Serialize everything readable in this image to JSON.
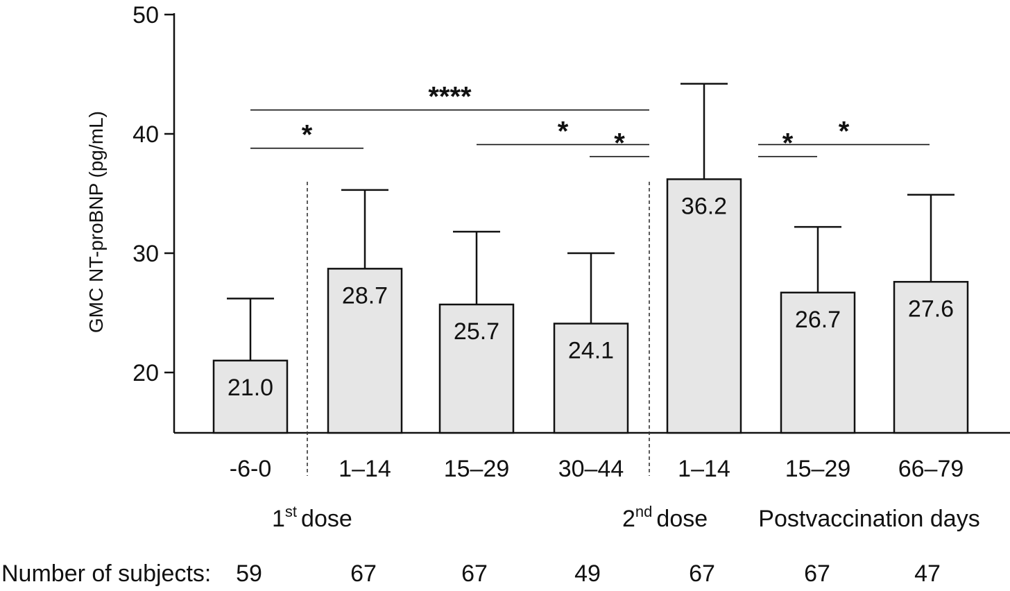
{
  "chart_data": {
    "type": "bar",
    "ylabel": "GMC NT-proBNP (pg/mL)",
    "ylim": [
      15,
      50
    ],
    "yticks": [
      20,
      30,
      40,
      50
    ],
    "categories": [
      "-6-0",
      "1–14",
      "15–29",
      "30–44",
      "1–14",
      "15–29",
      "66–79"
    ],
    "values": [
      21.0,
      28.7,
      25.7,
      24.1,
      36.2,
      26.7,
      27.6
    ],
    "value_labels": [
      "21.0",
      "28.7",
      "25.7",
      "24.1",
      "36.2",
      "26.7",
      "27.6"
    ],
    "error_upper": [
      26.2,
      35.3,
      31.8,
      30.0,
      44.2,
      32.2,
      34.9
    ],
    "bar_color": "#e6e6e6",
    "significance": [
      {
        "from": 0,
        "to": 4,
        "label": "****",
        "y": 42.0
      },
      {
        "from": 0,
        "to": 1,
        "label": "*",
        "y": 38.8
      },
      {
        "from": 2,
        "to": 4,
        "label": "*",
        "y": 39.1
      },
      {
        "from": 3,
        "to": 4,
        "label": "*",
        "y": 38.1
      },
      {
        "from": 4,
        "to": 6,
        "label": "*",
        "y": 39.1
      },
      {
        "from": 4,
        "to": 5,
        "label": "*",
        "y": 38.1
      }
    ],
    "dose_labels": [
      {
        "base": "1",
        "sup": "st",
        "text": "dose"
      },
      {
        "base": "2",
        "sup": "nd",
        "text": "dose"
      }
    ],
    "postvaccination_label": "Postvaccination days",
    "subjects_label": "Number of subjects:",
    "subjects": [
      "59",
      "67",
      "67",
      "49",
      "67",
      "67",
      "47"
    ]
  }
}
